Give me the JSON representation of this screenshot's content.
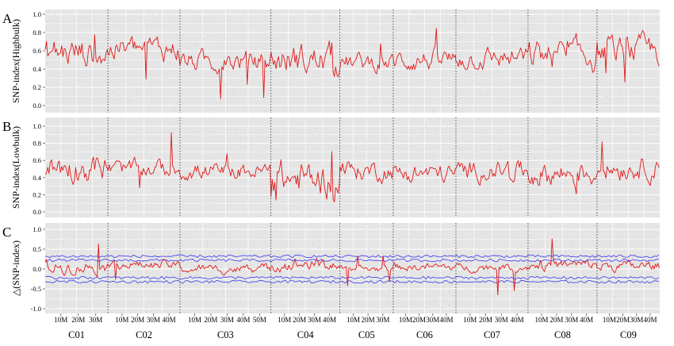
{
  "chart_data": [
    {
      "type": "line",
      "panel_letter": "A",
      "ylabel": "SNP-index(Highbulk)",
      "y_ticks": [
        "1.0",
        "0.8",
        "0.6",
        "0.4",
        "0.2",
        "0.0"
      ],
      "ylim": [
        0,
        1
      ],
      "grid": true,
      "line_color": "#e01818",
      "segment_means": [
        0.58,
        0.62,
        0.48,
        0.5,
        0.47,
        0.5,
        0.52,
        0.55,
        0.6
      ],
      "segment_spreads": [
        0.1,
        0.08,
        0.07,
        0.1,
        0.06,
        0.07,
        0.07,
        0.1,
        0.09
      ]
    },
    {
      "type": "line",
      "panel_letter": "B",
      "ylabel": "SNP-index(Lowbulk)",
      "y_ticks": [
        "1.0",
        "0.8",
        "0.6",
        "0.4",
        "0.2",
        "0.0"
      ],
      "ylim": [
        0,
        1
      ],
      "grid": true,
      "line_color": "#e01818",
      "segment_means": [
        0.52,
        0.5,
        0.47,
        0.38,
        0.48,
        0.45,
        0.48,
        0.45,
        0.52
      ],
      "segment_spreads": [
        0.1,
        0.06,
        0.06,
        0.12,
        0.07,
        0.07,
        0.07,
        0.09,
        0.08
      ]
    },
    {
      "type": "line",
      "panel_letter": "C",
      "ylabel": "△(SNP-index)",
      "y_ticks": [
        "1.0",
        "0.5",
        "0.0",
        "-0.5",
        "-1.0"
      ],
      "ylim": [
        -1,
        1
      ],
      "grid": true,
      "line_color": "#e01818",
      "threshold_color": "#4a4af0",
      "threshold_levels": [
        0.32,
        0.22,
        -0.22,
        -0.32
      ],
      "segment_means": [
        0.06,
        0.1,
        0.0,
        0.12,
        0.0,
        0.05,
        0.04,
        0.1,
        0.07
      ],
      "segment_spreads": [
        0.1,
        0.07,
        0.07,
        0.1,
        0.05,
        0.06,
        0.06,
        0.08,
        0.08
      ]
    }
  ],
  "chromosomes": [
    {
      "name": "C01",
      "span": 1.0,
      "ticks": [
        "10M",
        "20M",
        "30M"
      ]
    },
    {
      "name": "C02",
      "span": 1.15,
      "ticks": [
        "10M",
        "20M",
        "30M",
        "40M"
      ]
    },
    {
      "name": "C03",
      "span": 1.45,
      "ticks": [
        "10M",
        "20M",
        "30M",
        "40M",
        "50M"
      ]
    },
    {
      "name": "C04",
      "span": 1.1,
      "ticks": [
        "10M",
        "20M",
        "30M",
        "40M"
      ]
    },
    {
      "name": "C05",
      "span": 0.85,
      "ticks": [
        "10M",
        "20M",
        "30M"
      ]
    },
    {
      "name": "C06",
      "span": 1.0,
      "ticks": [
        "10M",
        "20M",
        "30M",
        "40M"
      ]
    },
    {
      "name": "C07",
      "span": 1.15,
      "ticks": [
        "10M",
        "20M",
        "30M",
        "40M"
      ]
    },
    {
      "name": "C08",
      "span": 1.1,
      "ticks": [
        "10M",
        "20M",
        "30M",
        "40M"
      ]
    },
    {
      "name": "C09",
      "span": 1.0,
      "ticks": [
        "10M",
        "20M",
        "30M",
        "40M"
      ]
    }
  ],
  "colors": {
    "panel_bg": "#e5e5e5",
    "grid": "#ffffff",
    "separator": "#333333"
  }
}
